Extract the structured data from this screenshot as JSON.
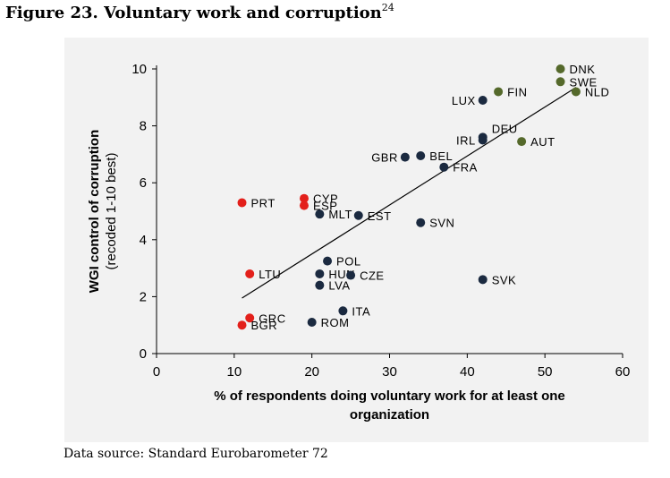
{
  "figure": {
    "title": "Figure 23. Voluntary work and corruption",
    "footnote_ref": "24",
    "source": "Data source: Standard Eurobarometer 72"
  },
  "colors": {
    "red": "#e3201b",
    "navy": "#1b2a40",
    "olive": "#55692b",
    "panel": "#f2f2f2",
    "line": "#000000"
  },
  "chart_data": {
    "type": "scatter",
    "xlabel_lines": [
      "% of respondents doing voluntary work for at least one",
      "organization"
    ],
    "ylabel_lines": [
      "WGI control of corruption",
      "(recoded 1-10 best)"
    ],
    "xlim": [
      0,
      60
    ],
    "ylim": [
      0,
      10
    ],
    "xticks": [
      0,
      10,
      20,
      30,
      40,
      50,
      60
    ],
    "yticks": [
      0,
      2,
      4,
      6,
      8,
      10
    ],
    "grid": false,
    "trendline": [
      [
        11,
        1.95
      ],
      [
        54,
        9.35
      ]
    ],
    "points": [
      {
        "label": "DNK",
        "x": 52,
        "y": 10.0,
        "group": "olive",
        "label_side": "right"
      },
      {
        "label": "SWE",
        "x": 52,
        "y": 9.55,
        "group": "olive",
        "label_side": "right"
      },
      {
        "label": "NLD",
        "x": 54,
        "y": 9.2,
        "group": "olive",
        "label_side": "right"
      },
      {
        "label": "FIN",
        "x": 44,
        "y": 9.2,
        "group": "olive",
        "label_side": "right"
      },
      {
        "label": "AUT",
        "x": 47,
        "y": 7.45,
        "group": "olive",
        "label_side": "right"
      },
      {
        "label": "LUX",
        "x": 42,
        "y": 8.9,
        "group": "navy",
        "label_side": "left"
      },
      {
        "label": "DEU",
        "x": 42,
        "y": 7.6,
        "group": "navy",
        "label_side": "right-up"
      },
      {
        "label": "IRL",
        "x": 42,
        "y": 7.5,
        "group": "navy",
        "label_side": "left"
      },
      {
        "label": "GBR",
        "x": 32,
        "y": 6.9,
        "group": "navy",
        "label_side": "left"
      },
      {
        "label": "BEL",
        "x": 34,
        "y": 6.95,
        "group": "navy",
        "label_side": "right"
      },
      {
        "label": "FRA",
        "x": 37,
        "y": 6.55,
        "group": "navy",
        "label_side": "right"
      },
      {
        "label": "MLT",
        "x": 21,
        "y": 4.9,
        "group": "navy",
        "label_side": "right"
      },
      {
        "label": "EST",
        "x": 26,
        "y": 4.85,
        "group": "navy",
        "label_side": "right"
      },
      {
        "label": "SVN",
        "x": 34,
        "y": 4.6,
        "group": "navy",
        "label_side": "right"
      },
      {
        "label": "POL",
        "x": 22,
        "y": 3.25,
        "group": "navy",
        "label_side": "right"
      },
      {
        "label": "HUN",
        "x": 21,
        "y": 2.8,
        "group": "navy",
        "label_side": "right"
      },
      {
        "label": "CZE",
        "x": 25,
        "y": 2.75,
        "group": "navy",
        "label_side": "right"
      },
      {
        "label": "LVA",
        "x": 21,
        "y": 2.4,
        "group": "navy",
        "label_side": "right"
      },
      {
        "label": "SVK",
        "x": 42,
        "y": 2.6,
        "group": "navy",
        "label_side": "right"
      },
      {
        "label": "ITA",
        "x": 24,
        "y": 1.5,
        "group": "navy",
        "label_side": "right"
      },
      {
        "label": "ROM",
        "x": 20,
        "y": 1.1,
        "group": "navy",
        "label_side": "right"
      },
      {
        "label": "PRT",
        "x": 11,
        "y": 5.3,
        "group": "red",
        "label_side": "right"
      },
      {
        "label": "CYP",
        "x": 19,
        "y": 5.45,
        "group": "red",
        "label_side": "right"
      },
      {
        "label": "ESP",
        "x": 19,
        "y": 5.2,
        "group": "red",
        "label_side": "right"
      },
      {
        "label": "LTU",
        "x": 12,
        "y": 2.8,
        "group": "red",
        "label_side": "right"
      },
      {
        "label": "GRC",
        "x": 12,
        "y": 1.25,
        "group": "red",
        "label_side": "right"
      },
      {
        "label": "BGR",
        "x": 11,
        "y": 1.0,
        "group": "red",
        "label_side": "right"
      }
    ]
  }
}
